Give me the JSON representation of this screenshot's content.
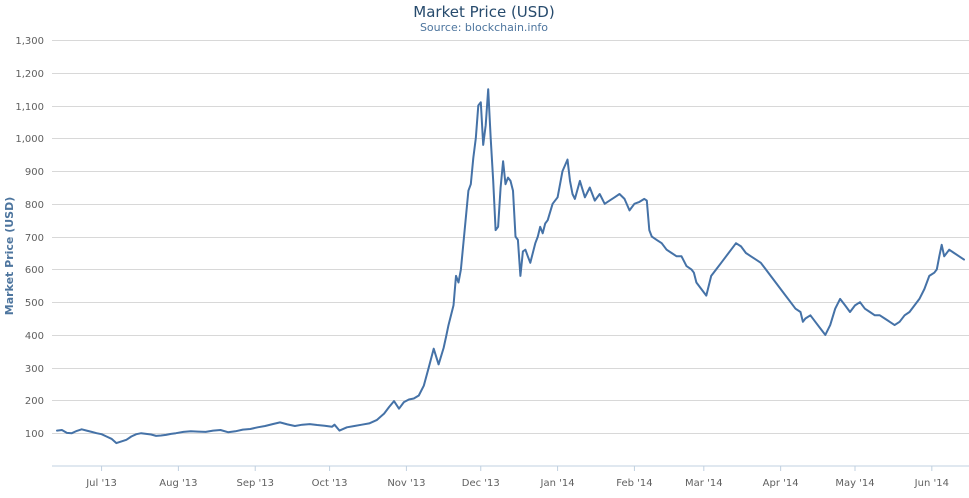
{
  "chart_data": {
    "type": "line",
    "title": "Market Price (USD)",
    "subtitle": "Source: blockchain.info",
    "xlabel": "",
    "ylabel": "Market Price (USD)",
    "ylim": [
      0,
      1300
    ],
    "yticks": [
      100,
      200,
      300,
      400,
      500,
      600,
      700,
      800,
      900,
      1000,
      1100,
      1200,
      1300
    ],
    "ytick_labels": [
      "100",
      "200",
      "300",
      "400",
      "500",
      "600",
      "700",
      "800",
      "900",
      "1,000",
      "1,100",
      "1,200",
      "1,300"
    ],
    "xlim": [
      "2013-06-11",
      "2014-06-16"
    ],
    "xticks": [
      "2013-07-01",
      "2013-08-01",
      "2013-09-01",
      "2013-10-01",
      "2013-11-01",
      "2013-12-01",
      "2014-01-01",
      "2014-02-01",
      "2014-03-01",
      "2014-04-01",
      "2014-05-01",
      "2014-06-01"
    ],
    "xtick_labels": [
      "Jul '13",
      "Aug '13",
      "Sep '13",
      "Oct '13",
      "Nov '13",
      "Dec '13",
      "Jan '14",
      "Feb '14",
      "Mar '14",
      "Apr '14",
      "May '14",
      "Jun '14"
    ],
    "grid": true,
    "legend": false,
    "color": "#4572a7",
    "series": [
      {
        "x": [
          "2013-06-13",
          "2013-06-15",
          "2013-06-17",
          "2013-06-19",
          "2013-06-21",
          "2013-06-23",
          "2013-06-25",
          "2013-06-27",
          "2013-06-29",
          "2013-07-01",
          "2013-07-03",
          "2013-07-05",
          "2013-07-07",
          "2013-07-09",
          "2013-07-11",
          "2013-07-13",
          "2013-07-15",
          "2013-07-17",
          "2013-07-19",
          "2013-07-21",
          "2013-07-23",
          "2013-07-25",
          "2013-07-27",
          "2013-07-29",
          "2013-07-31",
          "2013-08-03",
          "2013-08-06",
          "2013-08-09",
          "2013-08-12",
          "2013-08-15",
          "2013-08-18",
          "2013-08-21",
          "2013-08-24",
          "2013-08-27",
          "2013-08-30",
          "2013-09-02",
          "2013-09-05",
          "2013-09-08",
          "2013-09-11",
          "2013-09-14",
          "2013-09-17",
          "2013-09-20",
          "2013-09-23",
          "2013-09-26",
          "2013-09-29",
          "2013-10-02",
          "2013-10-03",
          "2013-10-05",
          "2013-10-08",
          "2013-10-11",
          "2013-10-14",
          "2013-10-17",
          "2013-10-20",
          "2013-10-23",
          "2013-10-25",
          "2013-10-27",
          "2013-10-29",
          "2013-10-31",
          "2013-11-02",
          "2013-11-04",
          "2013-11-06",
          "2013-11-08",
          "2013-11-10",
          "2013-11-12",
          "2013-11-14",
          "2013-11-16",
          "2013-11-17",
          "2013-11-18",
          "2013-11-19",
          "2013-11-20",
          "2013-11-21",
          "2013-11-22",
          "2013-11-23",
          "2013-11-24",
          "2013-11-25",
          "2013-11-26",
          "2013-11-27",
          "2013-11-28",
          "2013-11-29",
          "2013-11-30",
          "2013-12-01",
          "2013-12-02",
          "2013-12-03",
          "2013-12-04",
          "2013-12-05",
          "2013-12-06",
          "2013-12-07",
          "2013-12-08",
          "2013-12-09",
          "2013-12-10",
          "2013-12-11",
          "2013-12-12",
          "2013-12-13",
          "2013-12-14",
          "2013-12-15",
          "2013-12-16",
          "2013-12-17",
          "2013-12-18",
          "2013-12-19",
          "2013-12-20",
          "2013-12-21",
          "2013-12-22",
          "2013-12-23",
          "2013-12-24",
          "2013-12-25",
          "2013-12-26",
          "2013-12-27",
          "2013-12-28",
          "2013-12-30",
          "2014-01-01",
          "2014-01-03",
          "2014-01-05",
          "2014-01-06",
          "2014-01-07",
          "2014-01-08",
          "2014-01-10",
          "2014-01-12",
          "2014-01-14",
          "2014-01-16",
          "2014-01-18",
          "2014-01-20",
          "2014-01-22",
          "2014-01-24",
          "2014-01-26",
          "2014-01-28",
          "2014-01-30",
          "2014-02-01",
          "2014-02-03",
          "2014-02-05",
          "2014-02-06",
          "2014-02-07",
          "2014-02-08",
          "2014-02-10",
          "2014-02-12",
          "2014-02-14",
          "2014-02-16",
          "2014-02-18",
          "2014-02-20",
          "2014-02-22",
          "2014-02-24",
          "2014-02-25",
          "2014-02-26",
          "2014-02-28",
          "2014-03-02",
          "2014-03-04",
          "2014-03-06",
          "2014-03-08",
          "2014-03-10",
          "2014-03-12",
          "2014-03-14",
          "2014-03-16",
          "2014-03-18",
          "2014-03-20",
          "2014-03-22",
          "2014-03-24",
          "2014-03-26",
          "2014-03-28",
          "2014-03-30",
          "2014-04-01",
          "2014-04-03",
          "2014-04-05",
          "2014-04-07",
          "2014-04-09",
          "2014-04-10",
          "2014-04-11",
          "2014-04-13",
          "2014-04-15",
          "2014-04-17",
          "2014-04-19",
          "2014-04-21",
          "2014-04-23",
          "2014-04-25",
          "2014-04-27",
          "2014-04-29",
          "2014-05-01",
          "2014-05-03",
          "2014-05-05",
          "2014-05-07",
          "2014-05-09",
          "2014-05-11",
          "2014-05-13",
          "2014-05-15",
          "2014-05-17",
          "2014-05-19",
          "2014-05-21",
          "2014-05-23",
          "2014-05-25",
          "2014-05-27",
          "2014-05-29",
          "2014-05-31",
          "2014-06-02",
          "2014-06-03",
          "2014-06-04",
          "2014-06-05",
          "2014-06-06",
          "2014-06-08",
          "2014-06-10",
          "2014-06-12",
          "2014-06-14"
        ],
        "values": [
          108,
          110,
          101,
          100,
          107,
          112,
          108,
          104,
          100,
          97,
          90,
          83,
          70,
          75,
          80,
          90,
          97,
          100,
          98,
          96,
          92,
          93,
          95,
          98,
          100,
          104,
          106,
          105,
          104,
          108,
          110,
          103,
          106,
          111,
          113,
          118,
          122,
          128,
          133,
          127,
          122,
          126,
          128,
          125,
          123,
          120,
          126,
          108,
          118,
          122,
          126,
          130,
          140,
          160,
          180,
          198,
          175,
          195,
          203,
          206,
          215,
          245,
          300,
          358,
          310,
          360,
          395,
          430,
          460,
          490,
          580,
          560,
          600,
          680,
          760,
          840,
          860,
          940,
          1000,
          1100,
          1110,
          980,
          1040,
          1150,
          1000,
          870,
          720,
          730,
          850,
          930,
          860,
          880,
          870,
          840,
          700,
          690,
          580,
          655,
          660,
          640,
          620,
          650,
          680,
          700,
          730,
          710,
          740,
          750,
          800,
          820,
          900,
          935,
          870,
          830,
          815,
          870,
          820,
          850,
          810,
          830,
          800,
          810,
          820,
          830,
          815,
          780,
          800,
          806,
          815,
          810,
          720,
          700,
          690,
          680,
          660,
          650,
          640,
          640,
          610,
          600,
          590,
          560,
          540,
          520,
          580,
          600,
          620,
          640,
          660,
          680,
          670,
          650,
          640,
          630,
          620,
          600,
          580,
          560,
          540,
          520,
          500,
          480,
          470,
          440,
          450,
          460,
          440,
          420,
          400,
          430,
          480,
          510,
          490,
          470,
          490,
          500,
          480,
          470,
          460,
          460,
          450,
          440,
          430,
          440,
          460,
          470,
          490,
          510,
          540,
          580,
          590,
          600,
          640,
          675,
          640,
          660,
          650,
          640,
          630
        ],
        "name": ""
      }
    ]
  }
}
